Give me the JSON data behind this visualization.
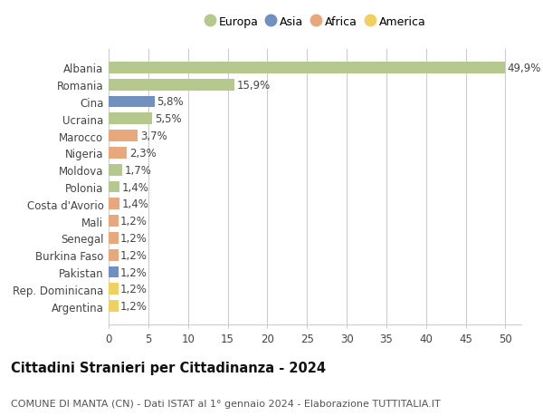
{
  "categories": [
    "Albania",
    "Romania",
    "Cina",
    "Ucraina",
    "Marocco",
    "Nigeria",
    "Moldova",
    "Polonia",
    "Costa d'Avorio",
    "Mali",
    "Senegal",
    "Burkina Faso",
    "Pakistan",
    "Rep. Dominicana",
    "Argentina"
  ],
  "values": [
    49.9,
    15.9,
    5.8,
    5.5,
    3.7,
    2.3,
    1.7,
    1.4,
    1.4,
    1.2,
    1.2,
    1.2,
    1.2,
    1.2,
    1.2
  ],
  "labels": [
    "49,9%",
    "15,9%",
    "5,8%",
    "5,5%",
    "3,7%",
    "2,3%",
    "1,7%",
    "1,4%",
    "1,4%",
    "1,2%",
    "1,2%",
    "1,2%",
    "1,2%",
    "1,2%",
    "1,2%"
  ],
  "continents": [
    "Europa",
    "Europa",
    "Asia",
    "Europa",
    "Africa",
    "Africa",
    "Europa",
    "Europa",
    "Africa",
    "Africa",
    "Africa",
    "Africa",
    "Asia",
    "America",
    "America"
  ],
  "continent_colors": {
    "Europa": "#b5c98e",
    "Asia": "#7090c0",
    "Africa": "#e8a87c",
    "America": "#f0d060"
  },
  "legend_order": [
    "Europa",
    "Asia",
    "Africa",
    "America"
  ],
  "title": "Cittadini Stranieri per Cittadinanza - 2024",
  "subtitle": "COMUNE DI MANTA (CN) - Dati ISTAT al 1° gennaio 2024 - Elaborazione TUTTITALIA.IT",
  "xlim": [
    0,
    52
  ],
  "xticks": [
    0,
    5,
    10,
    15,
    20,
    25,
    30,
    35,
    40,
    45,
    50
  ],
  "background_color": "#ffffff",
  "grid_color": "#cccccc",
  "bar_height": 0.68,
  "label_fontsize": 8.5,
  "title_fontsize": 10.5,
  "subtitle_fontsize": 8,
  "tick_fontsize": 8.5,
  "legend_fontsize": 9
}
